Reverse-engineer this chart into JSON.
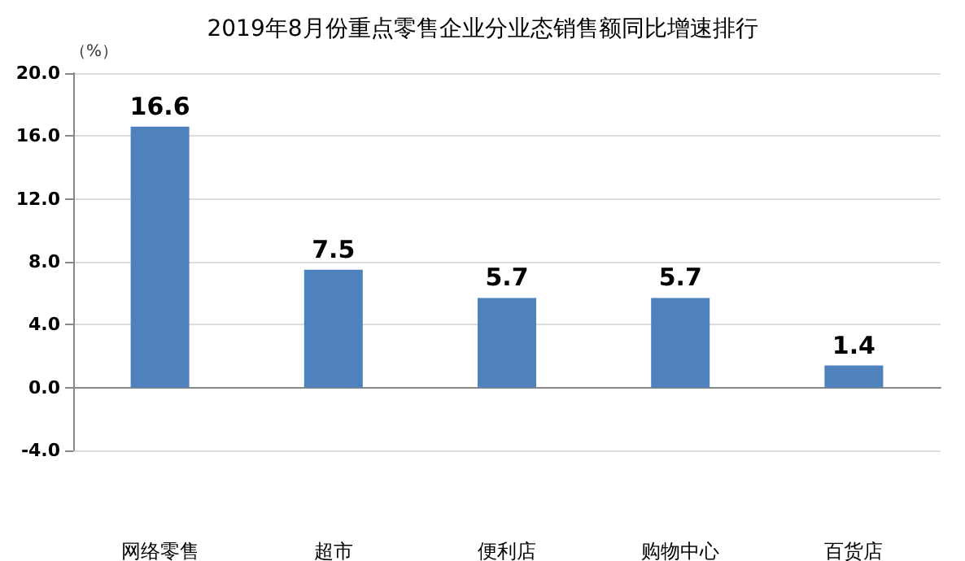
{
  "chart_data": {
    "type": "bar",
    "title": "2019年8月份重点零售企业分业态销售额同比增速排行",
    "ylabel": "（%）",
    "categories": [
      "网络零售",
      "超市",
      "便利店",
      "购物中心",
      "百货店"
    ],
    "values": [
      16.6,
      7.5,
      5.7,
      5.7,
      1.4
    ],
    "color": "#4f81bd",
    "ylim": [
      -4,
      20
    ],
    "yticks": [
      {
        "value": -4,
        "label": "-4.0"
      },
      {
        "value": 0,
        "label": "0.0"
      },
      {
        "value": 4,
        "label": "4.0"
      },
      {
        "value": 8,
        "label": "8.0"
      },
      {
        "value": 12,
        "label": "12.0"
      },
      {
        "value": 16,
        "label": "16.0"
      },
      {
        "value": 20,
        "label": "20.0"
      }
    ],
    "data_labels": true,
    "grid": "y"
  }
}
